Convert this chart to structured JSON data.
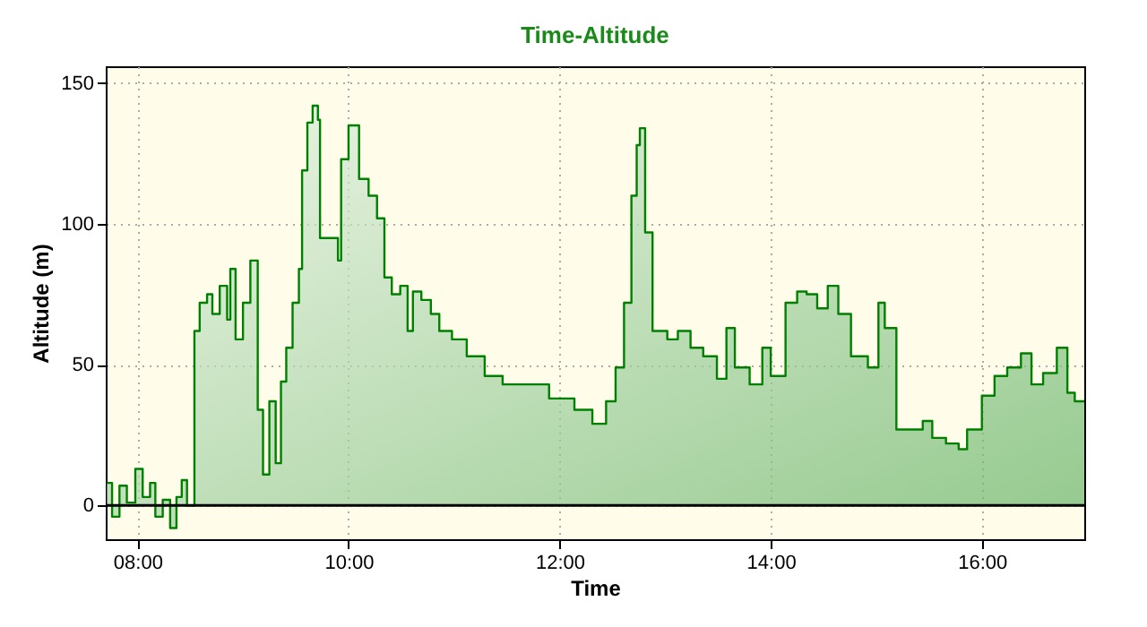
{
  "chart_data": {
    "type": "area",
    "title": "Time-Altitude",
    "xlabel": "Time",
    "ylabel": "Altitude (m)",
    "x": [
      7.71,
      7.76,
      7.83,
      7.9,
      7.98,
      8.05,
      8.12,
      8.17,
      8.24,
      8.31,
      8.37,
      8.42,
      8.47,
      8.54,
      8.59,
      8.66,
      8.71,
      8.78,
      8.85,
      8.88,
      8.93,
      9.0,
      9.07,
      9.14,
      9.19,
      9.25,
      9.31,
      9.36,
      9.41,
      9.47,
      9.53,
      9.56,
      9.61,
      9.66,
      9.71,
      9.73,
      9.9,
      9.93,
      10.0,
      10.1,
      10.19,
      10.27,
      10.34,
      10.41,
      10.49,
      10.56,
      10.61,
      10.69,
      10.78,
      10.86,
      10.98,
      11.12,
      11.29,
      11.46,
      11.73,
      11.9,
      12.14,
      12.31,
      12.44,
      12.53,
      12.61,
      12.68,
      12.73,
      12.76,
      12.81,
      12.88,
      13.02,
      13.12,
      13.24,
      13.36,
      13.49,
      13.58,
      13.66,
      13.8,
      13.92,
      14.0,
      14.14,
      14.25,
      14.34,
      14.44,
      14.54,
      14.64,
      14.76,
      14.92,
      15.02,
      15.08,
      15.19,
      15.32,
      15.44,
      15.53,
      15.66,
      15.78,
      15.86,
      16.0,
      16.12,
      16.24,
      16.37,
      16.47,
      16.58,
      16.71,
      16.81,
      16.88,
      16.97
    ],
    "series": [
      {
        "color": "#008000",
        "values": [
          8,
          -4,
          7,
          1,
          13,
          3,
          8,
          -4,
          2,
          -8,
          3,
          9,
          0,
          62,
          72,
          75,
          68,
          78,
          66,
          84,
          59,
          72,
          87,
          34,
          11,
          37,
          15,
          44,
          56,
          72,
          84,
          119,
          136,
          142,
          137,
          95,
          87,
          123,
          135,
          116,
          110,
          102,
          81,
          75,
          78,
          62,
          76,
          73,
          68,
          62,
          59,
          53,
          46,
          43,
          43,
          38,
          34,
          29,
          37,
          49,
          72,
          110,
          128,
          134,
          97,
          62,
          59,
          62,
          56,
          53,
          45,
          63,
          49,
          43,
          56,
          46,
          72,
          76,
          75,
          70,
          78,
          68,
          53,
          49,
          72,
          63,
          27,
          27,
          30,
          24,
          22,
          20,
          27,
          39,
          46,
          49,
          54,
          43,
          47,
          56,
          40,
          37,
          37
        ]
      }
    ],
    "xlim": [
      7.7,
      16.97
    ],
    "ylim": [
      -12,
      156
    ],
    "xticks": [
      {
        "value": 8,
        "label": "08:00"
      },
      {
        "value": 10,
        "label": "10:00"
      },
      {
        "value": 12,
        "label": "12:00"
      },
      {
        "value": 14,
        "label": "14:00"
      },
      {
        "value": 16,
        "label": "16:00"
      }
    ],
    "yticks": [
      0,
      50,
      100,
      150
    ],
    "ref_lines": [
      {
        "axis": "y",
        "value": 0,
        "color": "#000000"
      }
    ],
    "grid": true
  }
}
